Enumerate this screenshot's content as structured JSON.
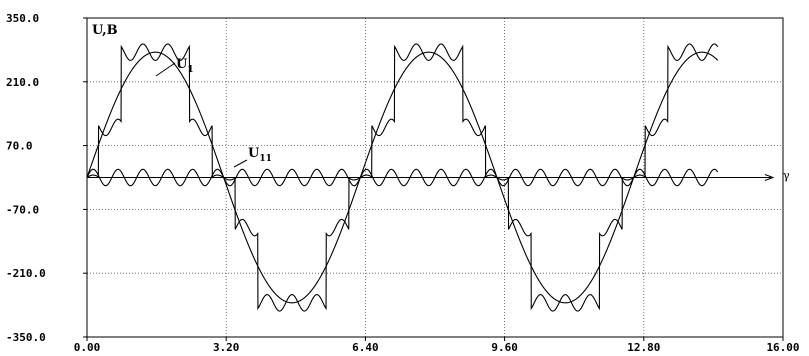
{
  "chart_data": {
    "type": "line",
    "title": "",
    "ylabel": "U,B",
    "xlabel": "γ",
    "xlim": [
      0,
      16
    ],
    "ylim": [
      -350,
      350
    ],
    "x_ticks": [
      "0.00",
      "3.20",
      "6.40",
      "9.60",
      "12.80",
      "16.00"
    ],
    "y_ticks": [
      "350.0",
      "210.0",
      "70.0",
      "-70.0",
      "-210.0",
      "-350.0"
    ],
    "x_tick_values": [
      0,
      3.2,
      6.4,
      9.6,
      12.8,
      16
    ],
    "y_tick_values": [
      350,
      210,
      70,
      -70,
      -210,
      -350
    ],
    "grid": true,
    "series": [
      {
        "name": "U1",
        "label_main": "U",
        "label_sub": "1",
        "kind": "sine",
        "amplitude": 275,
        "period": 6.2832,
        "phase": 0,
        "x_range": [
          0,
          14.5
        ]
      },
      {
        "name": "U1-step",
        "kind": "stepped",
        "step_levels": [
          0,
          110,
          275
        ],
        "step_switch_angles_deg": [
          15,
          45
        ],
        "ripple_amplitude": 18,
        "ripple_harmonic": 11,
        "x_range": [
          0,
          14.5
        ]
      },
      {
        "name": "U11",
        "label_main": "U",
        "label_sub": "11",
        "kind": "sine",
        "amplitude": 18,
        "period": 0.5712,
        "phase": 0,
        "x_range": [
          0,
          14.5
        ]
      }
    ]
  }
}
